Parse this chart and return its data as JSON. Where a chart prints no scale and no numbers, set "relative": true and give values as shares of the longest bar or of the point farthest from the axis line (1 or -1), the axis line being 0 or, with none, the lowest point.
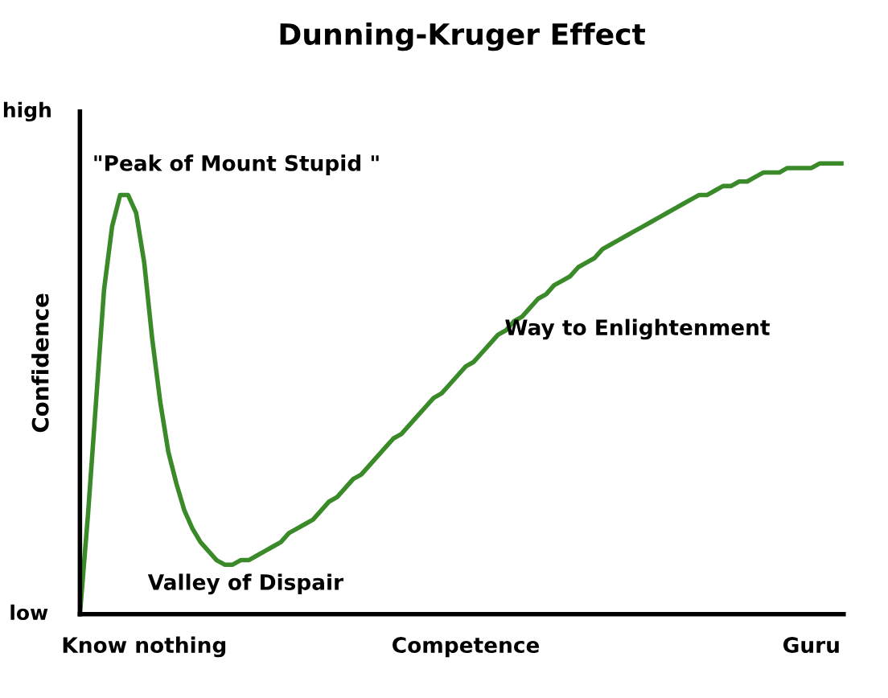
{
  "chart_data": {
    "type": "line",
    "title": "Dunning-Kruger Effect",
    "ylabel": "Confidence",
    "relative": true,
    "color": "#3a8a2a",
    "marker": "none",
    "line_style": "solid",
    "grid": false,
    "legend": false,
    "categories": [
      null,
      null,
      null,
      null,
      null,
      null,
      null,
      null,
      "Know nothing",
      null,
      null,
      null,
      null,
      null,
      null,
      null,
      null,
      null,
      null,
      null,
      null,
      null,
      null,
      null,
      null,
      null,
      null,
      null,
      null,
      null,
      null,
      null,
      null,
      null,
      null,
      null,
      null,
      null,
      null,
      null,
      null,
      null,
      null,
      null,
      null,
      null,
      null,
      null,
      "Competence",
      null,
      null,
      null,
      null,
      null,
      null,
      null,
      null,
      null,
      null,
      null,
      null,
      null,
      null,
      null,
      null,
      null,
      null,
      null,
      null,
      null,
      null,
      null,
      null,
      null,
      null,
      null,
      null,
      null,
      null,
      null,
      null,
      null,
      null,
      null,
      null,
      null,
      null,
      null,
      null,
      null,
      null,
      "Guru",
      null,
      null,
      null,
      null
    ],
    "values": [
      0,
      0.22,
      0.47,
      0.72,
      0.86,
      0.93,
      0.93,
      0.89,
      0.78,
      0.61,
      0.47,
      0.36,
      0.29,
      0.23,
      0.19,
      0.16,
      0.14,
      0.12,
      0.11,
      0.11,
      0.12,
      0.12,
      0.13,
      0.14,
      0.15,
      0.16,
      0.18,
      0.19,
      0.2,
      0.21,
      0.23,
      0.25,
      0.26,
      0.28,
      0.3,
      0.31,
      0.33,
      0.35,
      0.37,
      0.39,
      0.4,
      0.42,
      0.44,
      0.46,
      0.48,
      0.49,
      0.51,
      0.53,
      0.55,
      0.56,
      0.58,
      0.6,
      0.62,
      0.63,
      0.65,
      0.66,
      0.68,
      0.7,
      0.71,
      0.73,
      0.74,
      0.75,
      0.77,
      0.78,
      0.79,
      0.81,
      0.82,
      0.83,
      0.84,
      0.85,
      0.86,
      0.87,
      0.88,
      0.89,
      0.9,
      0.91,
      0.92,
      0.93,
      0.93,
      0.94,
      0.95,
      0.95,
      0.96,
      0.96,
      0.97,
      0.98,
      0.98,
      0.98,
      0.99,
      0.99,
      0.99,
      0.99,
      1,
      1,
      1,
      1
    ],
    "annotations": [
      "low",
      "high",
      "\"Peak of Mount Stupid \"",
      "Valley of Dispair",
      "Way to Enlightenment"
    ]
  }
}
